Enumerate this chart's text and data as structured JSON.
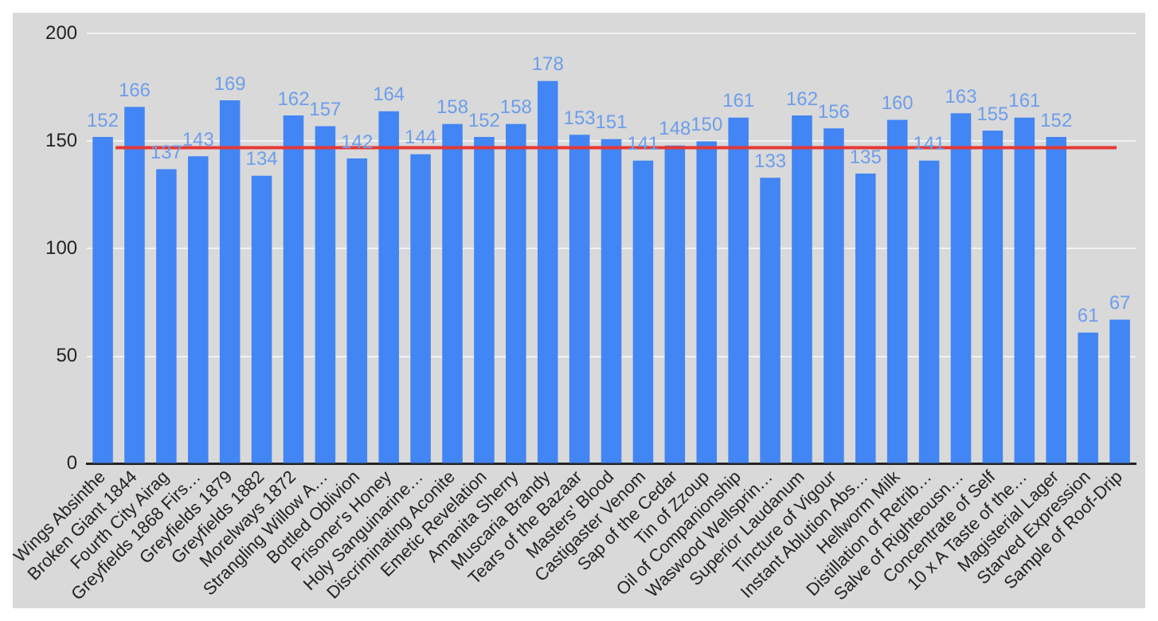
{
  "chart_data": {
    "type": "bar",
    "categories": [
      "Wings Absinthe",
      "Broken Giant 1844",
      "Fourth City Airag",
      "Greyfields 1868 Firs…",
      "Greyfields 1879",
      "Greyfields 1882",
      "Morelways 1872",
      "Strangling Willow A…",
      "Bottled Oblivion",
      "Prisoner's Honey",
      "Holy Sanguinarine…",
      "Discriminating Aconite",
      "Emetic Revelation",
      "Amanita Sherry",
      "Muscaria Brandy",
      "Tears of the Bazaar",
      "Masters' Blood",
      "Castigaster Venom",
      "Sap of the Cedar",
      "Tin of Zzoup",
      "Oil of Companionship",
      "Waswood Wellsprin…",
      "Superior Laudanum",
      "Tincture of Vigour",
      "Instant Ablution Abs…",
      "Hellworm Milk",
      "Distillation of Retrib…",
      "Salve of Righteousn…",
      "Concentrate of Self",
      "10 x A Taste of the…",
      "Magisterial Lager",
      "Starved Expression",
      "Sample of Roof-Drip"
    ],
    "values": [
      152,
      166,
      137,
      143,
      169,
      134,
      162,
      157,
      142,
      164,
      144,
      158,
      152,
      158,
      178,
      153,
      151,
      141,
      148,
      150,
      161,
      133,
      162,
      156,
      135,
      160,
      141,
      163,
      155,
      161,
      152,
      61,
      67
    ],
    "color": "#4285f4",
    "ylim": [
      0,
      200
    ],
    "yticks": [
      0,
      50,
      100,
      150,
      200
    ],
    "grid": "y",
    "data_labels": true,
    "ref_lines": [
      {
        "axis": "y",
        "value": 147,
        "color": "#e53935"
      }
    ]
  }
}
